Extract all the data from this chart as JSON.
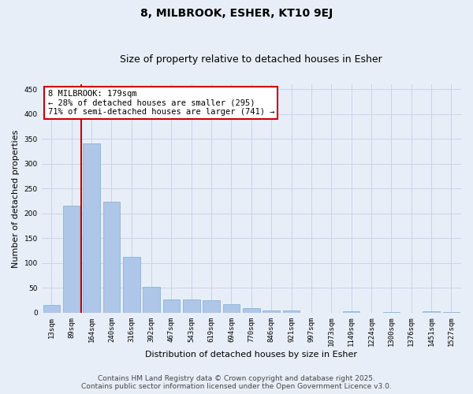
{
  "title": "8, MILBROOK, ESHER, KT10 9EJ",
  "subtitle": "Size of property relative to detached houses in Esher",
  "xlabel": "Distribution of detached houses by size in Esher",
  "ylabel": "Number of detached properties",
  "categories": [
    "13sqm",
    "89sqm",
    "164sqm",
    "240sqm",
    "316sqm",
    "392sqm",
    "467sqm",
    "543sqm",
    "619sqm",
    "694sqm",
    "770sqm",
    "846sqm",
    "921sqm",
    "997sqm",
    "1073sqm",
    "1149sqm",
    "1224sqm",
    "1300sqm",
    "1376sqm",
    "1451sqm",
    "1527sqm"
  ],
  "values": [
    15,
    216,
    340,
    224,
    112,
    53,
    27,
    27,
    25,
    17,
    9,
    5,
    4,
    0,
    0,
    3,
    0,
    2,
    0,
    3,
    2
  ],
  "bar_color": "#aec6e8",
  "bar_edge_color": "#7aafd4",
  "grid_color": "#c8d4e8",
  "background_color": "#e8eef8",
  "vline_x_idx": 2,
  "vline_color": "#cc0000",
  "annotation_text": "8 MILBROOK: 179sqm\n← 28% of detached houses are smaller (295)\n71% of semi-detached houses are larger (741) →",
  "annotation_box_color": "#ffffff",
  "annotation_box_edge": "#cc0000",
  "ylim": [
    0,
    460
  ],
  "yticks": [
    0,
    50,
    100,
    150,
    200,
    250,
    300,
    350,
    400,
    450
  ],
  "footer_line1": "Contains HM Land Registry data © Crown copyright and database right 2025.",
  "footer_line2": "Contains public sector information licensed under the Open Government Licence v3.0.",
  "title_fontsize": 10,
  "subtitle_fontsize": 9,
  "label_fontsize": 8,
  "tick_fontsize": 6.5,
  "annotation_fontsize": 7.5,
  "footer_fontsize": 6.5
}
